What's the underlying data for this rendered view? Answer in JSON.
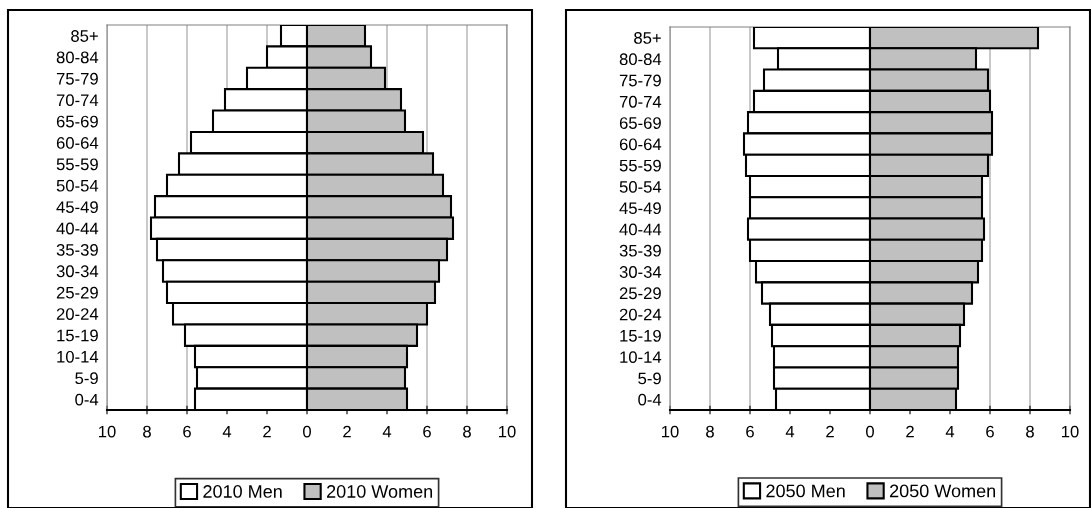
{
  "chart_data": [
    {
      "type": "bar",
      "orientation": "horizontal",
      "stacked": true,
      "categories": [
        "85+",
        "80-84",
        "75-79",
        "70-74",
        "65-69",
        "60-64",
        "55-59",
        "50-54",
        "45-49",
        "40-44",
        "35-39",
        "30-34",
        "25-29",
        "20-24",
        "15-19",
        "10-14",
        "5-9",
        "0-4"
      ],
      "series": [
        {
          "name": "2010 Men",
          "color": "#ffffff",
          "values": [
            -1.3,
            -2.0,
            -3.0,
            -4.1,
            -4.7,
            -5.8,
            -6.4,
            -7.0,
            -7.6,
            -7.8,
            -7.5,
            -7.2,
            -7.0,
            -6.7,
            -6.1,
            -5.6,
            -5.5,
            -5.6
          ]
        },
        {
          "name": "2010 Women",
          "color": "#c0c0c0",
          "values": [
            2.9,
            3.2,
            3.9,
            4.7,
            4.9,
            5.8,
            6.3,
            6.8,
            7.2,
            7.3,
            7.0,
            6.6,
            6.4,
            6.0,
            5.5,
            5.0,
            4.9,
            5.0
          ]
        }
      ],
      "xlim": [
        -10,
        10
      ],
      "xticks": [
        {
          "value": -10,
          "label": "10"
        },
        {
          "value": -8,
          "label": "8"
        },
        {
          "value": -6,
          "label": "6"
        },
        {
          "value": -4,
          "label": "4"
        },
        {
          "value": -2,
          "label": "2"
        },
        0,
        2,
        4,
        6,
        8,
        10
      ],
      "grid": "x",
      "legend": "bottom"
    },
    {
      "type": "bar",
      "orientation": "horizontal",
      "stacked": true,
      "categories": [
        "85+",
        "80-84",
        "75-79",
        "70-74",
        "65-69",
        "60-64",
        "55-59",
        "50-54",
        "45-49",
        "40-44",
        "35-39",
        "30-34",
        "25-29",
        "20-24",
        "15-19",
        "10-14",
        "5-9",
        "0-4"
      ],
      "series": [
        {
          "name": "2050 Men",
          "color": "#ffffff",
          "values": [
            -5.8,
            -4.6,
            -5.3,
            -5.8,
            -6.1,
            -6.3,
            -6.2,
            -6.0,
            -6.0,
            -6.1,
            -6.0,
            -5.7,
            -5.4,
            -5.0,
            -4.9,
            -4.8,
            -4.8,
            -4.7
          ]
        },
        {
          "name": "2050 Women",
          "color": "#c0c0c0",
          "values": [
            8.4,
            5.3,
            5.9,
            6.0,
            6.1,
            6.1,
            5.9,
            5.6,
            5.6,
            5.7,
            5.6,
            5.4,
            5.1,
            4.7,
            4.5,
            4.4,
            4.4,
            4.3
          ]
        }
      ],
      "xlim": [
        -10,
        10
      ],
      "xticks": [
        {
          "value": -10,
          "label": "10"
        },
        {
          "value": -8,
          "label": "8"
        },
        {
          "value": -6,
          "label": "6"
        },
        {
          "value": -4,
          "label": "4"
        },
        {
          "value": -2,
          "label": "2"
        },
        0,
        2,
        4,
        6,
        8,
        10
      ],
      "grid": "x",
      "legend": "bottom"
    }
  ]
}
